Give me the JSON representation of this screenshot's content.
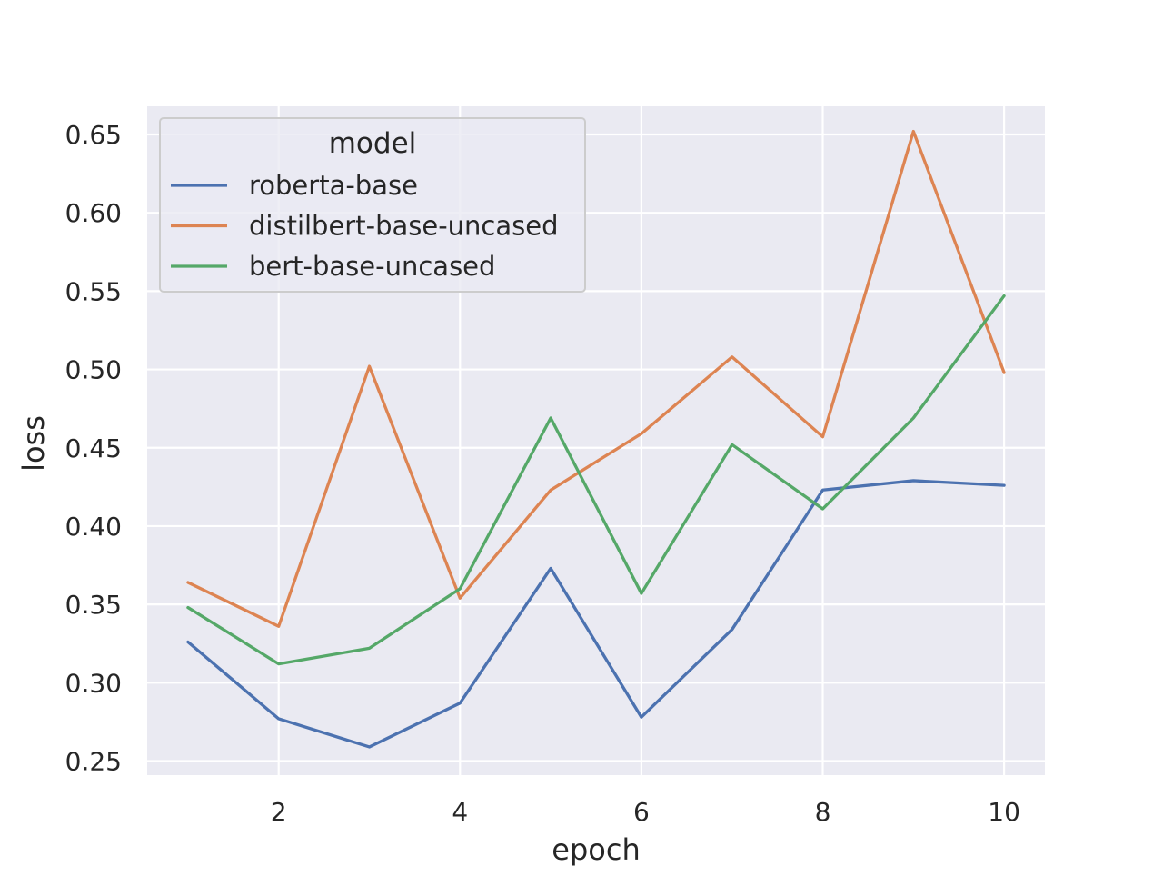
{
  "chart_data": {
    "type": "line",
    "xlabel": "epoch",
    "ylabel": "loss",
    "xlim": [
      0.55,
      10.45
    ],
    "ylim": [
      0.241,
      0.668
    ],
    "x_ticks": [
      2,
      4,
      6,
      8,
      10
    ],
    "y_ticks": [
      0.25,
      0.3,
      0.35,
      0.4,
      0.45,
      0.5,
      0.55,
      0.6,
      0.65
    ],
    "x_tick_labels": [
      "2",
      "4",
      "6",
      "8",
      "10"
    ],
    "y_tick_labels": [
      "0.25",
      "0.30",
      "0.35",
      "0.40",
      "0.45",
      "0.50",
      "0.55",
      "0.60",
      "0.65"
    ],
    "grid": true,
    "legend": {
      "title": "model",
      "placement": "top-left"
    },
    "x": [
      1,
      2,
      3,
      4,
      5,
      6,
      7,
      8,
      9,
      10
    ],
    "series": [
      {
        "name": "roberta-base",
        "color": "#4c72b0",
        "values": [
          0.326,
          0.277,
          0.259,
          0.287,
          0.373,
          0.278,
          0.334,
          0.423,
          0.429,
          0.426
        ]
      },
      {
        "name": "distilbert-base-uncased",
        "color": "#dd8452",
        "values": [
          0.364,
          0.336,
          0.502,
          0.354,
          0.423,
          0.459,
          0.508,
          0.457,
          0.652,
          0.498
        ]
      },
      {
        "name": "bert-base-uncased",
        "color": "#55a868",
        "values": [
          0.348,
          0.312,
          0.322,
          0.36,
          0.469,
          0.357,
          0.452,
          0.411,
          0.469,
          0.547
        ]
      }
    ],
    "colors": {
      "plot_background": "#eaeaf2",
      "grid": "#ffffff"
    }
  }
}
